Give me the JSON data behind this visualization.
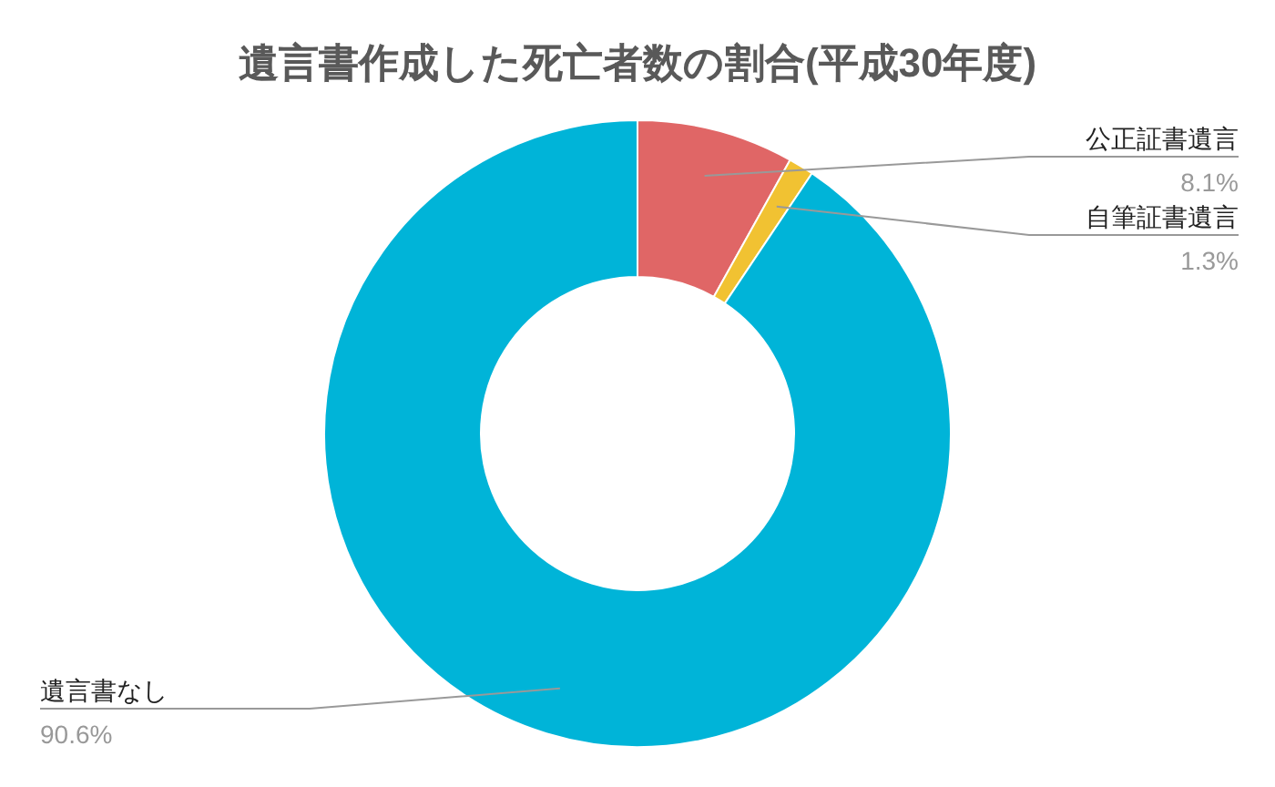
{
  "chart_data": {
    "type": "donut",
    "title": "遺言書作成した死亡者数の割合(平成30年度)",
    "categories": [
      "公正証書遺言",
      "自筆証書遺言",
      "遺言書なし"
    ],
    "values": [
      8.1,
      1.3,
      90.6
    ],
    "value_labels": [
      "8.1%",
      "1.3%",
      "90.6%"
    ],
    "colors": [
      "#e06666",
      "#f1c232",
      "#00b4d8"
    ],
    "legend": false
  }
}
